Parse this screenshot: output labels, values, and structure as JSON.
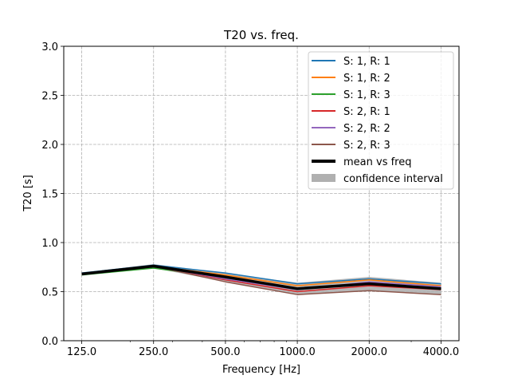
{
  "chart_data": {
    "type": "line",
    "title": "T20 vs. freq.",
    "xlabel": "Frequency [Hz]",
    "ylabel": "T20 [s]",
    "x_scale": "log",
    "x": [
      125,
      250,
      500,
      1000,
      2000,
      4000
    ],
    "x_tick_labels": [
      "125.0",
      "250.0",
      "500.0",
      "1000.0",
      "2000.0",
      "4000.0"
    ],
    "ylim": [
      0.0,
      3.0
    ],
    "y_ticks": [
      0.0,
      0.5,
      1.0,
      1.5,
      2.0,
      2.5,
      3.0
    ],
    "y_tick_labels": [
      "0.0",
      "0.5",
      "1.0",
      "1.5",
      "2.0",
      "2.5",
      "3.0"
    ],
    "grid": true,
    "grid_style": "dashed",
    "legend_position": "top-right",
    "series": [
      {
        "name": "S: 1, R: 1",
        "color": "#1f77b4",
        "values": [
          0.69,
          0.77,
          0.69,
          0.58,
          0.63,
          0.58
        ]
      },
      {
        "name": "S: 1, R: 2",
        "color": "#ff7f0e",
        "values": [
          0.68,
          0.76,
          0.67,
          0.56,
          0.62,
          0.56
        ]
      },
      {
        "name": "S: 1, R: 3",
        "color": "#2ca02c",
        "values": [
          0.67,
          0.74,
          0.64,
          0.53,
          0.58,
          0.54
        ]
      },
      {
        "name": "S: 2, R: 1",
        "color": "#d62728",
        "values": [
          0.68,
          0.76,
          0.62,
          0.5,
          0.56,
          0.52
        ]
      },
      {
        "name": "S: 2, R: 2",
        "color": "#9467bd",
        "values": [
          0.68,
          0.76,
          0.63,
          0.52,
          0.6,
          0.55
        ]
      },
      {
        "name": "S: 2, R: 3",
        "color": "#8c564b",
        "values": [
          0.68,
          0.76,
          0.6,
          0.47,
          0.51,
          0.47
        ]
      }
    ],
    "mean": {
      "name": "mean vs freq",
      "color": "#000000",
      "values": [
        0.68,
        0.76,
        0.65,
        0.53,
        0.58,
        0.53
      ]
    },
    "confidence_interval": {
      "name": "confidence interval",
      "color": "#b0b0b0",
      "lower": [
        0.67,
        0.74,
        0.6,
        0.47,
        0.51,
        0.47
      ],
      "upper": [
        0.69,
        0.78,
        0.69,
        0.59,
        0.65,
        0.59
      ]
    }
  }
}
